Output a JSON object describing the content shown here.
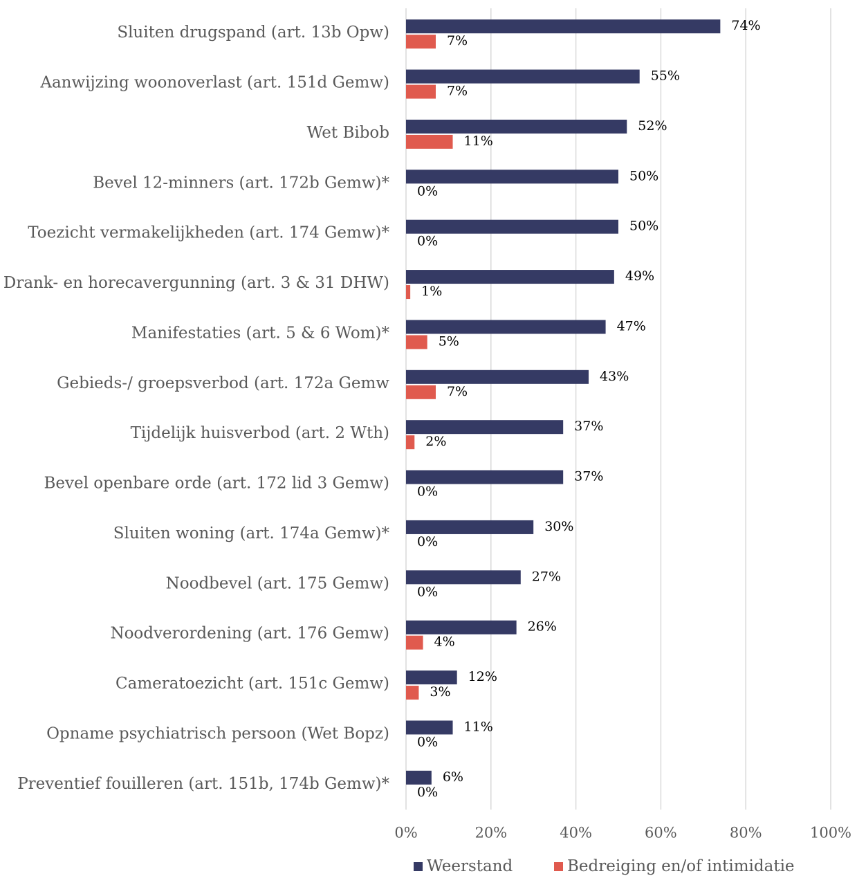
{
  "chart_data": {
    "type": "hbar",
    "categories": [
      "Sluiten drugspand (art. 13b Opw)",
      "Aanwijzing woonoverlast (art. 151d Gemw)",
      "Wet Bibob",
      "Bevel 12-minners (art. 172b Gemw)*",
      "Toezicht vermakelijkheden (art. 174 Gemw)*",
      "Drank- en horecavergunning (art. 3 & 31 DHW)",
      "Manifestaties (art. 5 & 6 Wom)*",
      "Gebieds-/ groepsverbod (art. 172a Gemw",
      "Tijdelijk huisverbod (art. 2 Wth)",
      "Bevel openbare orde (art. 172 lid 3 Gemw)",
      "Sluiten woning (art. 174a Gemw)*",
      "Noodbevel (art. 175 Gemw)",
      "Noodverordening (art. 176 Gemw)",
      "Cameratoezicht (art. 151c Gemw)",
      "Opname psychiatrisch persoon (Wet Bopz)",
      "Preventief fouilleren (art. 151b, 174b Gemw)*"
    ],
    "series": [
      {
        "name": "Weerstand",
        "color": "#353a64",
        "values": [
          74,
          55,
          52,
          50,
          50,
          49,
          47,
          43,
          37,
          37,
          30,
          27,
          26,
          12,
          11,
          6
        ],
        "value_labels": [
          "74%",
          "55%",
          "52%",
          "50%",
          "50%",
          "49%",
          "47%",
          "43%",
          "37%",
          "37%",
          "30%",
          "27%",
          "26%",
          "12%",
          "11%",
          "6%"
        ]
      },
      {
        "name": "Bedreiging en/of intimidatie",
        "color": "#e05a4e",
        "values": [
          7,
          7,
          11,
          0,
          0,
          1,
          5,
          7,
          2,
          0,
          0,
          0,
          4,
          3,
          0,
          0
        ],
        "value_labels": [
          "7%",
          "7%",
          "11%",
          "0%",
          "0%",
          "1%",
          "5%",
          "7%",
          "2%",
          "0%",
          "0%",
          "0%",
          "4%",
          "3%",
          "0%",
          "0%"
        ]
      }
    ],
    "xlim": [
      0,
      100
    ],
    "xticks": [
      {
        "value": 0,
        "label": "0%"
      },
      {
        "value": 20,
        "label": "20%"
      },
      {
        "value": 40,
        "label": "40%"
      },
      {
        "value": 60,
        "label": "60%"
      },
      {
        "value": 80,
        "label": "80%"
      },
      {
        "value": 100,
        "label": "100%"
      }
    ],
    "grid": true,
    "legend": "bottom"
  }
}
